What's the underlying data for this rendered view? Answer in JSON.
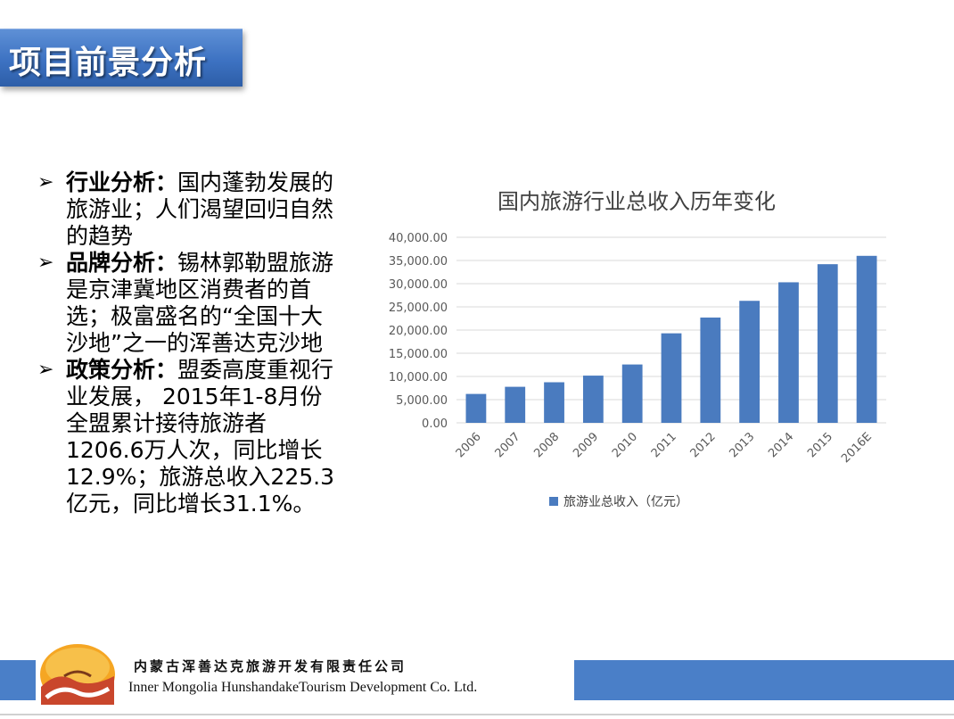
{
  "slide": {
    "title": "项目前景分析"
  },
  "bullets": [
    {
      "heading": "行业分析",
      "separator": "：",
      "body": "国内蓬勃发展的旅游业；人们渴望回归自然的趋势"
    },
    {
      "heading": "品牌分析",
      "separator": "：",
      "body": "锡林郭勒盟旅游是京津冀地区消费者的首选；极富盛名的“全国十大沙地”之一的浑善达克沙地"
    },
    {
      "heading": "政策分析",
      "separator": "：",
      "body": "盟委高度重视行业发展， 2015年1-8月份全盟累计接待旅游者1206.6万人次，同比增长12.9%；旅游总收入225.3亿元，同比增长31.1%。"
    }
  ],
  "chart_data": {
    "type": "bar",
    "title": "国内旅游行业总收入历年变化",
    "categories": [
      "2006",
      "2007",
      "2008",
      "2009",
      "2010",
      "2011",
      "2012",
      "2013",
      "2014",
      "2015",
      "2016E"
    ],
    "series": [
      {
        "name": "旅游业总收入（亿元）",
        "values": [
          6230,
          7770,
          8750,
          10180,
          12580,
          19300,
          22700,
          26300,
          30300,
          34200,
          36000
        ]
      }
    ],
    "ylim": [
      0,
      40000
    ],
    "yticks": [
      "0.00",
      "5,000.00",
      "10,000.00",
      "15,000.00",
      "20,000.00",
      "25,000.00",
      "30,000.00",
      "35,000.00",
      "40,000.00"
    ],
    "xlabel": "",
    "ylabel": "",
    "legend_position": "bottom",
    "grid": true,
    "color": "#4a7bbf"
  },
  "footer": {
    "company_cn": "内蒙古浑善达克旅游开发有限责任公司",
    "company_en": "Inner Mongolia HunshandakeTourism Development Co. Ltd."
  },
  "colors": {
    "accent": "#3d72c2",
    "bar": "#4a7bbf"
  }
}
